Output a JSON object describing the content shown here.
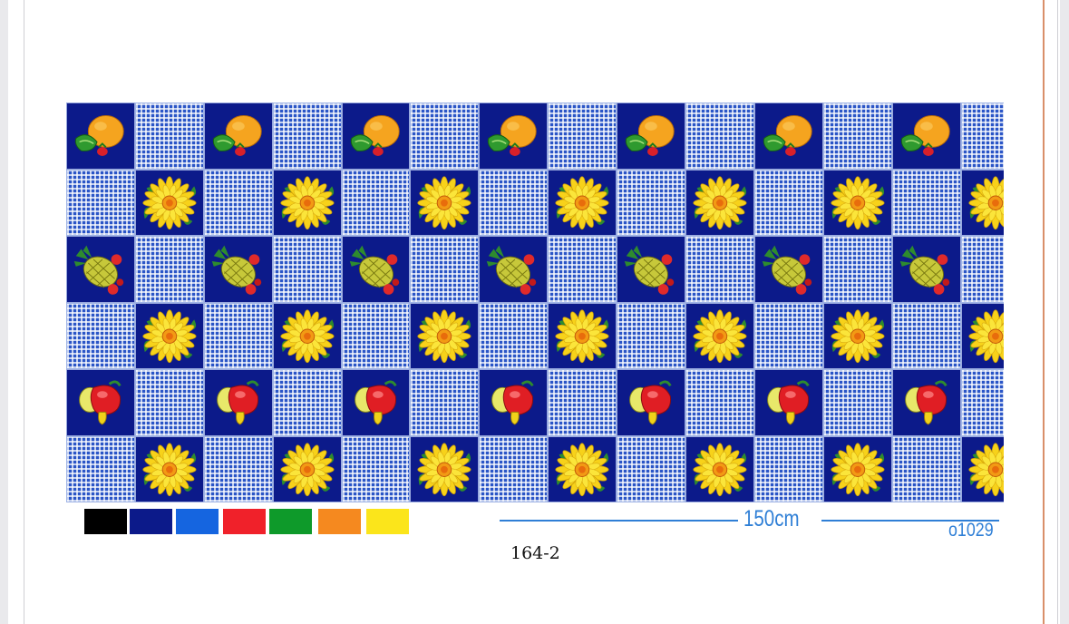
{
  "document": {
    "design_number": "164-2",
    "width_label": "150cm",
    "pattern_code": "o1029"
  },
  "fabric": {
    "row_motifs": [
      "orange",
      "sunflower",
      "pineapple",
      "sunflower",
      "apple",
      "sunflower"
    ],
    "columns": 14
  },
  "colors": {
    "swatches": [
      "#000000",
      "#0c1a8a",
      "#1565e0",
      "#f0212a",
      "#0e9a2a",
      "#f5891f",
      "#fbe51b"
    ],
    "gingham": "#2a55c7",
    "navy": "#0c1a8a",
    "ruler": "#2f7fd6"
  }
}
